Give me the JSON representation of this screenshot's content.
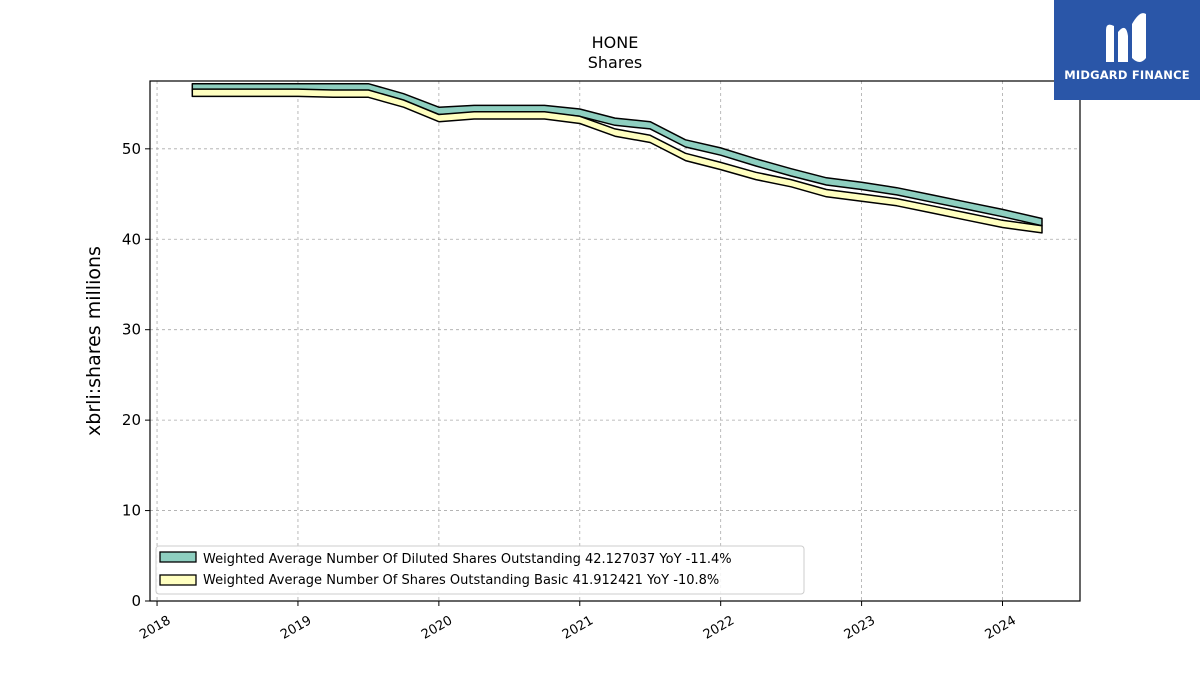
{
  "chart_data": {
    "type": "area",
    "title": "HONE",
    "subtitle": "Shares",
    "xlabel": "",
    "ylabel": "xbrli:shares millions",
    "ylim": [
      0,
      57.5
    ],
    "xlim": [
      2017.95,
      2024.55
    ],
    "yticks": [
      0,
      10,
      20,
      30,
      40,
      50
    ],
    "xticks": [
      "2018",
      "2019",
      "2020",
      "2021",
      "2022",
      "2023",
      "2024"
    ],
    "grid": true,
    "legend_position": "lower-left",
    "series": [
      {
        "name": "Weighted Average Number Of Diluted Shares Outstanding",
        "legend_label": "Weighted Average Number Of Diluted Shares Outstanding  42.127037 YoY -11.4%",
        "color": "#8ecfc0",
        "x": [
          2018.25,
          2018.5,
          2018.75,
          2019.0,
          2019.25,
          2019.5,
          2019.75,
          2020.0,
          2020.25,
          2020.5,
          2020.75,
          2021.0,
          2021.25,
          2021.5,
          2021.75,
          2022.0,
          2022.25,
          2022.5,
          2022.75,
          2023.0,
          2023.25,
          2023.5,
          2023.75,
          2024.0,
          2024.28
        ],
        "values": [
          57.2,
          57.2,
          57.2,
          57.2,
          57.2,
          57.2,
          56.1,
          54.6,
          54.8,
          54.8,
          54.8,
          54.4,
          53.4,
          53.0,
          51.0,
          50.1,
          48.9,
          47.8,
          46.8,
          46.3,
          45.7,
          44.9,
          44.1,
          43.3,
          42.3
        ]
      },
      {
        "name": "Weighted Average Number Of Shares Outstanding Basic",
        "legend_label": "Weighted Average Number Of Shares Outstanding Basic  41.912421 YoY -10.8%",
        "color": "#ffffc0",
        "x": [
          2018.25,
          2018.5,
          2018.75,
          2019.0,
          2019.25,
          2019.5,
          2019.75,
          2020.0,
          2020.25,
          2020.5,
          2020.75,
          2021.0,
          2021.25,
          2021.5,
          2021.75,
          2022.0,
          2022.25,
          2022.5,
          2022.75,
          2023.0,
          2023.25,
          2023.5,
          2023.75,
          2024.0,
          2024.28
        ],
        "values": [
          56.6,
          56.6,
          56.6,
          56.6,
          56.5,
          56.5,
          55.4,
          53.8,
          54.1,
          54.1,
          54.1,
          53.6,
          52.2,
          51.5,
          49.5,
          48.5,
          47.4,
          46.6,
          45.5,
          45.0,
          44.5,
          43.7,
          42.9,
          42.1,
          41.5
        ]
      }
    ]
  },
  "logo": {
    "text": "MIDGARD FINANCE",
    "bg_color": "#2a56a8"
  }
}
